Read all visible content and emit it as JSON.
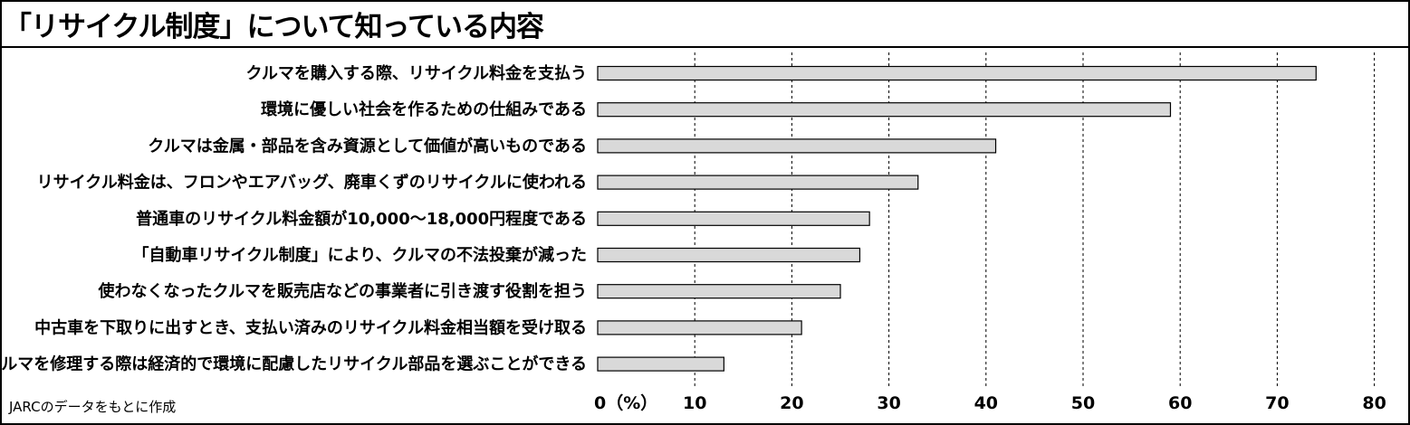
{
  "title": "「リサイクル制度」について知っている内容",
  "source": "JARCのデータをもとに作成",
  "colors": {
    "bar_fill": "#d9d9d9",
    "bar_stroke": "#000000",
    "grid": "#000000"
  },
  "chart_data": {
    "type": "bar",
    "orientation": "horizontal",
    "title": "「リサイクル制度」について知っている内容",
    "xlabel": "",
    "ylabel": "",
    "unit_label": "（%）",
    "xlim": [
      0,
      80
    ],
    "ticks": [
      0,
      10,
      20,
      30,
      40,
      50,
      60,
      70,
      80
    ],
    "grid": true,
    "categories": [
      "クルマを購入する際、リサイクル料金を支払う",
      "環境に優しい社会を作るための仕組みである",
      "クルマは金属・部品を含み資源として価値が高いものである",
      "リサイクル料金は、フロンやエアバッグ、廃車くずのリサイクルに使われる",
      "普通車のリサイクル料金額が10,000～18,000円程度である",
      "「自動車リサイクル制度」により、クルマの不法投棄が減った",
      "使わなくなったクルマを販売店などの事業者に引き渡す役割を担う",
      "中古車を下取りに出すとき、支払い済みのリサイクル料金相当額を受け取る",
      "クルマを修理する際は経済的で環境に配慮したリサイクル部品を選ぶことができる"
    ],
    "values": [
      74,
      59,
      41,
      33,
      28,
      27,
      25,
      21,
      13
    ]
  }
}
